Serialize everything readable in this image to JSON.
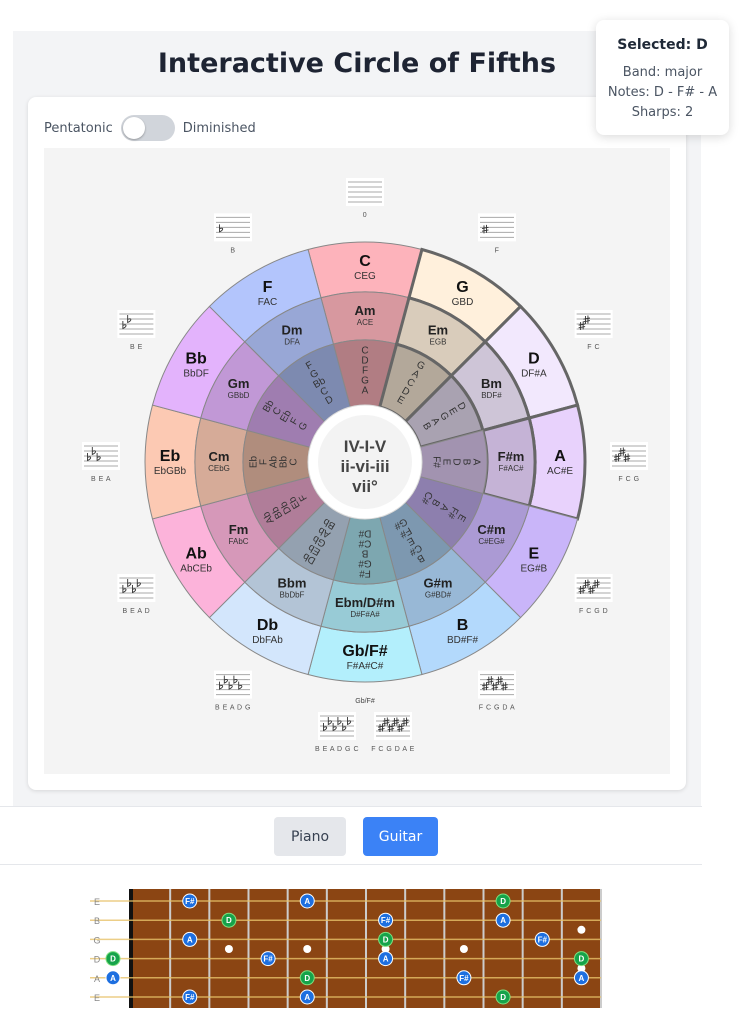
{
  "title": "Interactive Circle of Fifths",
  "toggle": {
    "left_label": "Pentatonic",
    "right_label": "Diminished",
    "on": false
  },
  "tooltip": {
    "title": "Selected: D",
    "band": "Band: major",
    "notes": "Notes: D - F# - A",
    "sharps": "Sharps: 2"
  },
  "center_text": [
    "IV-I-V",
    "ii-vi-iii",
    "vii°"
  ],
  "selected": "D",
  "highlighted": [
    1,
    2,
    3
  ],
  "segments": [
    {
      "major": "C",
      "major_notes": "CEG",
      "minor": "Am",
      "minor_notes": "ACE",
      "pentatonic": [
        "C",
        "D",
        "F",
        "G",
        "A"
      ],
      "sig": "0",
      "acc": "none",
      "count": 0,
      "color": "#fdb3bb"
    },
    {
      "major": "G",
      "major_notes": "GBD",
      "minor": "Em",
      "minor_notes": "EGB",
      "pentatonic": [
        "G",
        "A",
        "C",
        "D",
        "E"
      ],
      "sig": "F",
      "acc": "sharp",
      "count": 1,
      "color": "#fff0dc"
    },
    {
      "major": "D",
      "major_notes": "DF#A",
      "minor": "Bm",
      "minor_notes": "BDF#",
      "pentatonic": [
        "D",
        "E",
        "G",
        "A",
        "B"
      ],
      "sig": "F C",
      "acc": "sharp",
      "count": 2,
      "color": "#f2e8fd"
    },
    {
      "major": "A",
      "major_notes": "AC#E",
      "minor": "F#m",
      "minor_notes": "F#AC#",
      "pentatonic": [
        "A",
        "B",
        "D",
        "E",
        "F#"
      ],
      "sig": "F C G",
      "acc": "sharp",
      "count": 3,
      "color": "#e8d2fc"
    },
    {
      "major": "E",
      "major_notes": "EG#B",
      "minor": "C#m",
      "minor_notes": "C#EG#",
      "pentatonic": [
        "E",
        "F#",
        "A",
        "B",
        "C#"
      ],
      "sig": "F C G D",
      "acc": "sharp",
      "count": 4,
      "color": "#c9b5f9"
    },
    {
      "major": "B",
      "major_notes": "BD#F#",
      "minor": "G#m",
      "minor_notes": "G#BD#",
      "pentatonic": [
        "B",
        "C#",
        "E",
        "F#",
        "G#"
      ],
      "sig": "F C G D A",
      "acc": "sharp",
      "count": 5,
      "color": "#b3d9fc"
    },
    {
      "major": "Gb/F#",
      "major_notes": "F#A#C#",
      "minor": "Ebm/D#m",
      "minor_notes": "D#F#A#",
      "pentatonic": [
        "F#",
        "G#",
        "B",
        "C#",
        "D#"
      ],
      "sig": "Gb/F#",
      "sig_flat": "B E A D G C",
      "sig_sharp": "F C G D A E",
      "acc": "both",
      "count": 6,
      "color": "#b3effc"
    },
    {
      "major": "Db",
      "major_notes": "DbFAb",
      "minor": "Bbm",
      "minor_notes": "BbDbF",
      "pentatonic": [
        "Db",
        "Eb",
        "Gb",
        "Ab",
        "Bb"
      ],
      "sig": "B E A D G",
      "acc": "flat",
      "count": 5,
      "color": "#d3e6fc"
    },
    {
      "major": "Ab",
      "major_notes": "AbCEb",
      "minor": "Fm",
      "minor_notes": "FAbC",
      "pentatonic": [
        "Ab",
        "Bb",
        "Db",
        "Eb",
        "F"
      ],
      "sig": "B E A D",
      "acc": "flat",
      "count": 4,
      "color": "#fcb3da"
    },
    {
      "major": "Eb",
      "major_notes": "EbGBb",
      "minor": "Cm",
      "minor_notes": "CEbG",
      "pentatonic": [
        "Eb",
        "F",
        "Ab",
        "Bb",
        "C"
      ],
      "sig": "B E A",
      "acc": "flat",
      "count": 3,
      "color": "#fcc9b3"
    },
    {
      "major": "Bb",
      "major_notes": "BbDF",
      "minor": "Gm",
      "minor_notes": "GBbD",
      "pentatonic": [
        "Bb",
        "C",
        "Eb",
        "F",
        "G"
      ],
      "sig": "B E",
      "acc": "flat",
      "count": 2,
      "color": "#e3b3fc"
    },
    {
      "major": "F",
      "major_notes": "FAC",
      "minor": "Dm",
      "minor_notes": "DFA",
      "pentatonic": [
        "F",
        "G",
        "Bb",
        "C",
        "D"
      ],
      "sig": "B",
      "acc": "flat",
      "count": 1,
      "color": "#b3c5fc"
    }
  ],
  "instrument_buttons": [
    {
      "label": "Piano",
      "active": false
    },
    {
      "label": "Guitar",
      "active": true
    }
  ],
  "guitar": {
    "strings": [
      "E",
      "B",
      "G",
      "D",
      "A",
      "E"
    ],
    "frets": 12,
    "inlays": [
      3,
      5,
      7,
      9,
      12
    ],
    "root_color": "#16a34a",
    "note_color": "#1d6fe0",
    "fretboard_color": "#8b4513",
    "notes": [
      {
        "string": 0,
        "fret": 2,
        "note": "F#"
      },
      {
        "string": 0,
        "fret": 5,
        "note": "A"
      },
      {
        "string": 0,
        "fret": 10,
        "note": "D"
      },
      {
        "string": 1,
        "fret": 3,
        "note": "D"
      },
      {
        "string": 1,
        "fret": 7,
        "note": "F#"
      },
      {
        "string": 1,
        "fret": 10,
        "note": "A"
      },
      {
        "string": 2,
        "fret": 2,
        "note": "A"
      },
      {
        "string": 2,
        "fret": 7,
        "note": "D"
      },
      {
        "string": 2,
        "fret": 11,
        "note": "F#"
      },
      {
        "string": 3,
        "fret": 0,
        "note": "D"
      },
      {
        "string": 3,
        "fret": 4,
        "note": "F#"
      },
      {
        "string": 3,
        "fret": 7,
        "note": "A"
      },
      {
        "string": 3,
        "fret": 12,
        "note": "D"
      },
      {
        "string": 4,
        "fret": 0,
        "note": "A"
      },
      {
        "string": 4,
        "fret": 5,
        "note": "D"
      },
      {
        "string": 4,
        "fret": 9,
        "note": "F#"
      },
      {
        "string": 4,
        "fret": 12,
        "note": "A"
      },
      {
        "string": 5,
        "fret": 2,
        "note": "F#"
      },
      {
        "string": 5,
        "fret": 5,
        "note": "A"
      },
      {
        "string": 5,
        "fret": 10,
        "note": "D"
      }
    ]
  }
}
